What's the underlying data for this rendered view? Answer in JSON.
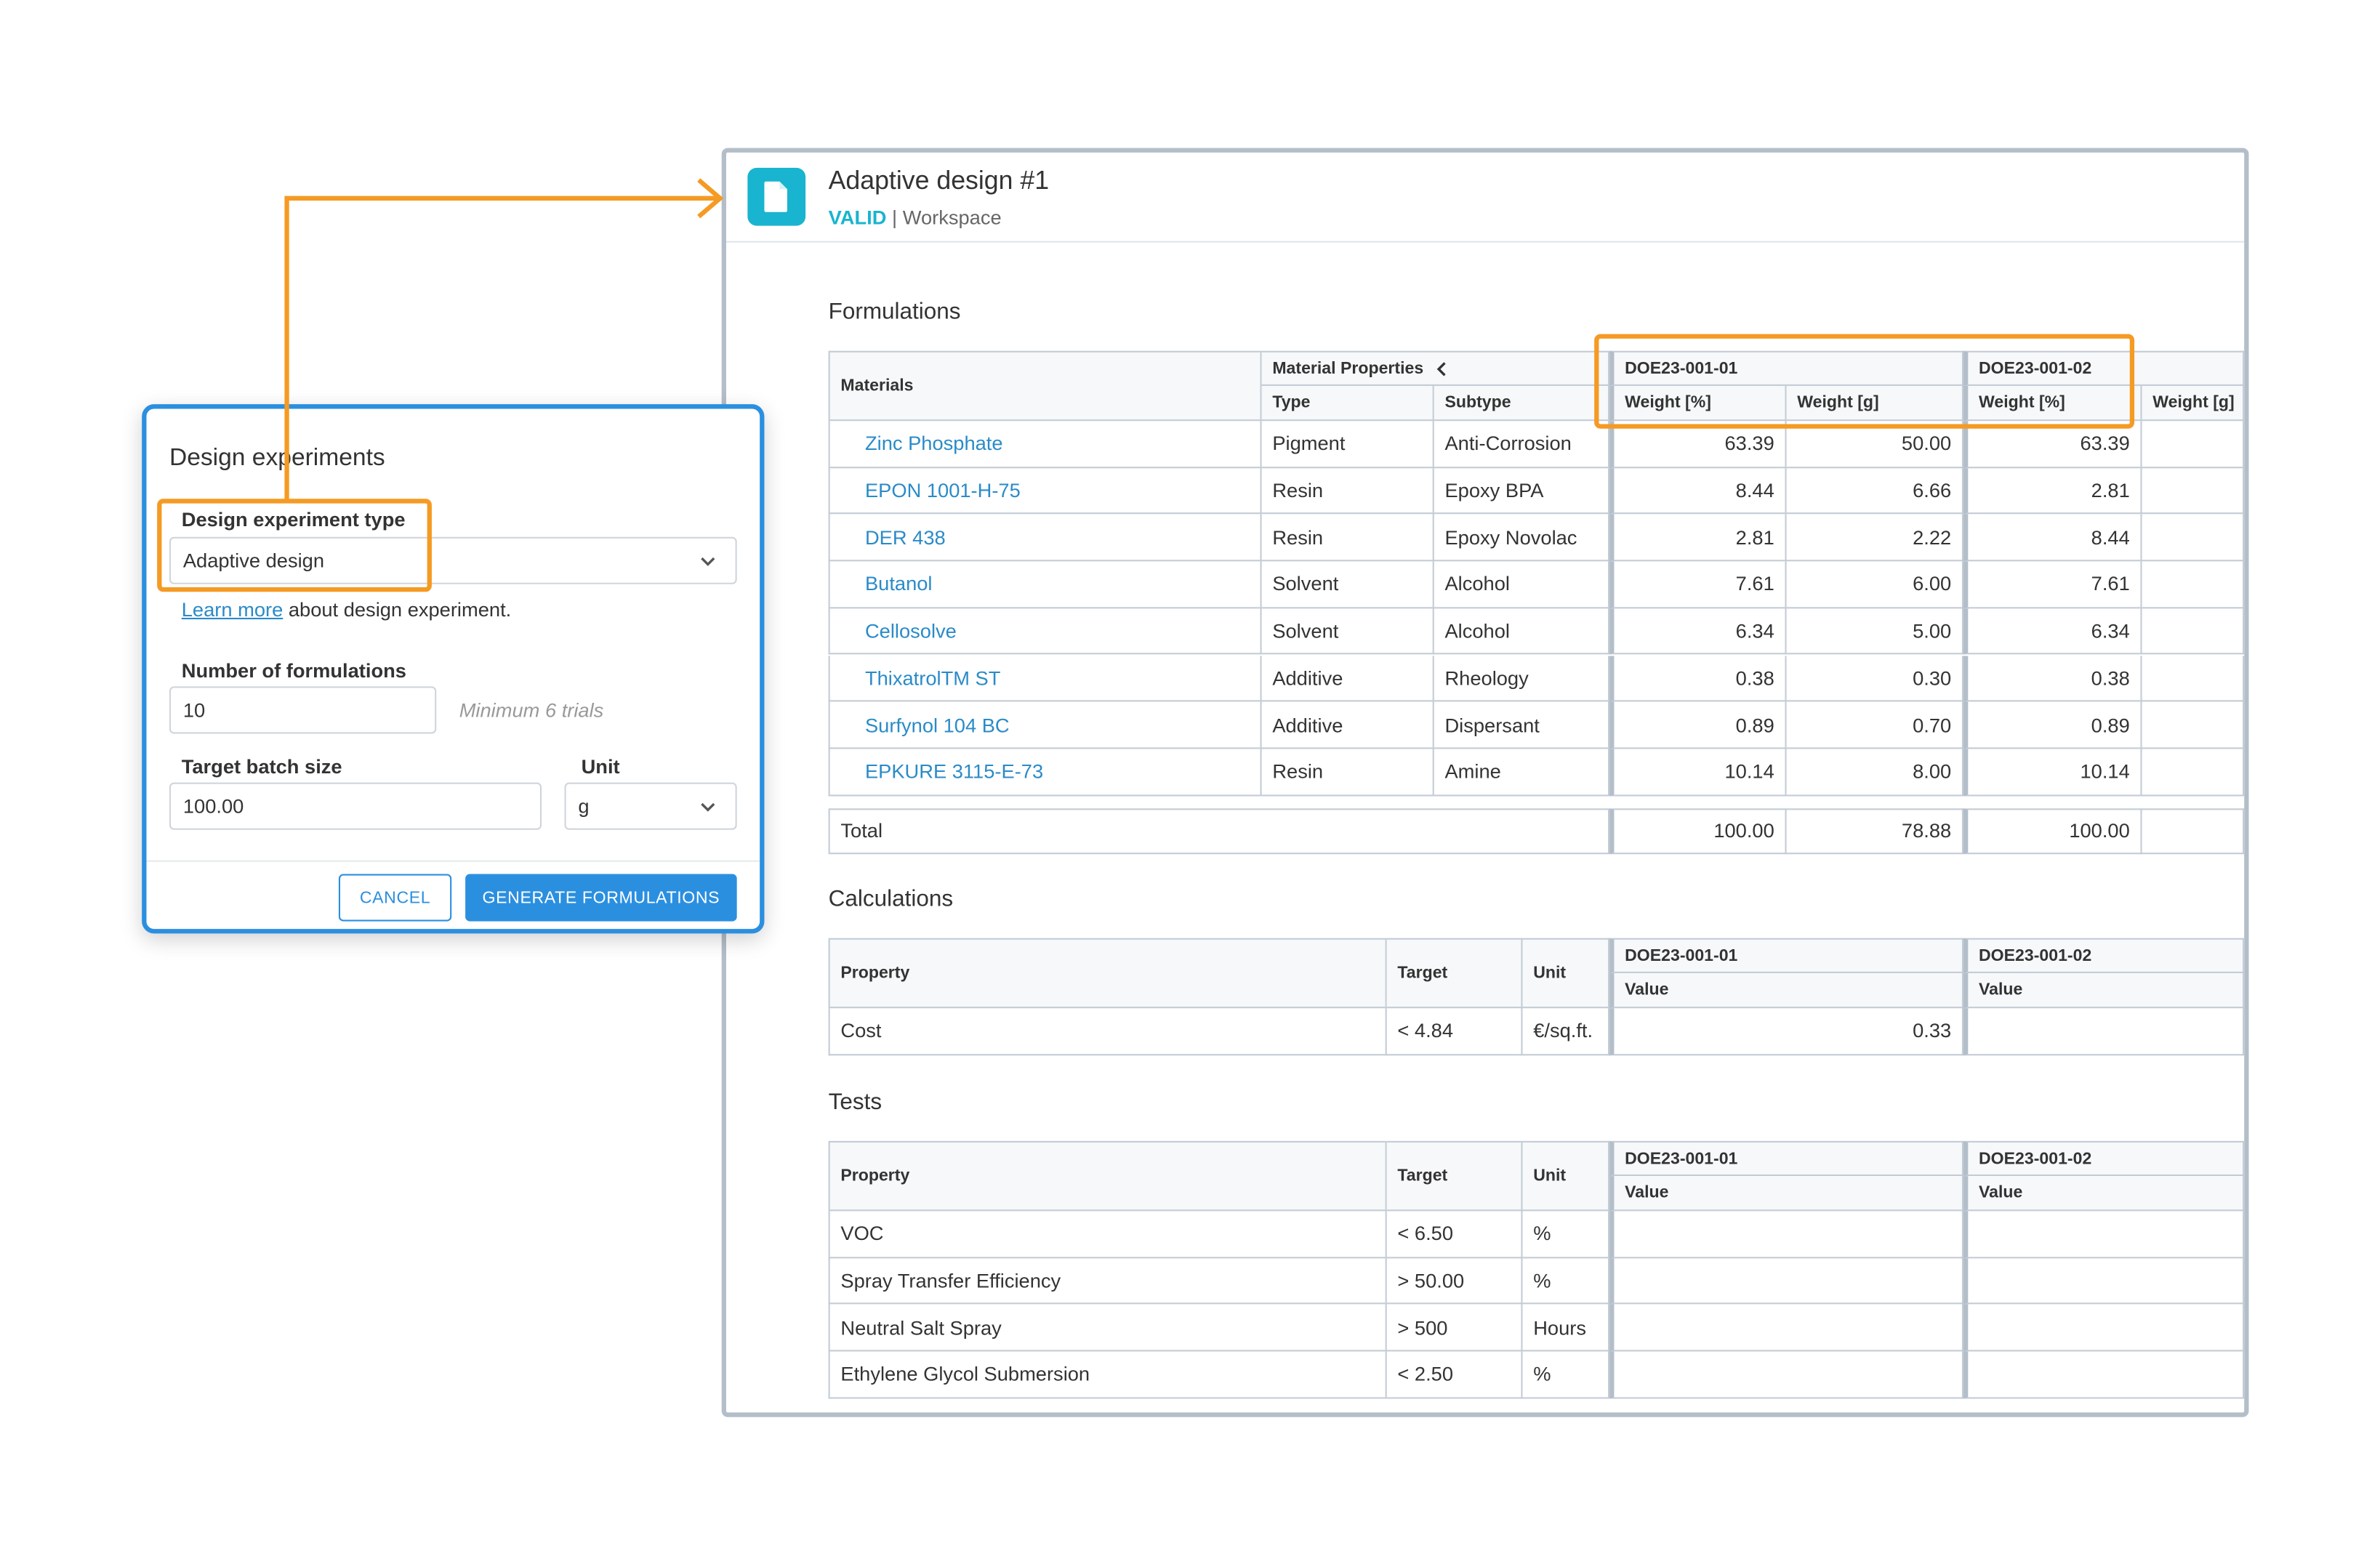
{
  "document": {
    "title": "Adaptive design #1",
    "status": "VALID",
    "separator": " | ",
    "location": "Workspace",
    "icon": "document-icon",
    "accent_color": "#19b4cf"
  },
  "formulations": {
    "section_title": "Formulations",
    "materials_header": "Materials",
    "properties_header": "Material Properties",
    "type_header": "Type",
    "subtype_header": "Subtype",
    "trial1": "DOE23-001-01",
    "trial2": "DOE23-001-02",
    "weight_pct_header": "Weight [%]",
    "weight_g_header": "Weight [g]",
    "rows": [
      {
        "material": "Zinc Phosphate",
        "type": "Pigment",
        "subtype": "Anti-Corrosion",
        "w1pct": "63.39",
        "w1g": "50.00",
        "w2pct": "63.39"
      },
      {
        "material": "EPON 1001-H-75",
        "type": "Resin",
        "subtype": "Epoxy BPA",
        "w1pct": "8.44",
        "w1g": "6.66",
        "w2pct": "2.81"
      },
      {
        "material": "DER 438",
        "type": "Resin",
        "subtype": "Epoxy Novolac",
        "w1pct": "2.81",
        "w1g": "2.22",
        "w2pct": "8.44"
      },
      {
        "material": "Butanol",
        "type": "Solvent",
        "subtype": "Alcohol",
        "w1pct": "7.61",
        "w1g": "6.00",
        "w2pct": "7.61"
      },
      {
        "material": "Cellosolve",
        "type": "Solvent",
        "subtype": "Alcohol",
        "w1pct": "6.34",
        "w1g": "5.00",
        "w2pct": "6.34"
      },
      {
        "material": "ThixatrolTM ST",
        "type": "Additive",
        "subtype": "Rheology",
        "w1pct": "0.38",
        "w1g": "0.30",
        "w2pct": "0.38"
      },
      {
        "material": "Surfynol 104 BC",
        "type": "Additive",
        "subtype": "Dispersant",
        "w1pct": "0.89",
        "w1g": "0.70",
        "w2pct": "0.89"
      },
      {
        "material": "EPKURE 3115-E-73",
        "type": "Resin",
        "subtype": "Amine",
        "w1pct": "10.14",
        "w1g": "8.00",
        "w2pct": "10.14"
      }
    ],
    "total_label": "Total",
    "total_w1pct": "100.00",
    "total_w1g": "78.88",
    "total_w2pct": "100.00"
  },
  "calculations": {
    "section_title": "Calculations",
    "property_header": "Property",
    "target_header": "Target",
    "unit_header": "Unit",
    "value_header": "Value",
    "rows": [
      {
        "property": "Cost",
        "target": "< 4.84",
        "unit": "€/sq.ft.",
        "v1": "0.33",
        "v2": ""
      }
    ]
  },
  "tests": {
    "section_title": "Tests",
    "rows": [
      {
        "property": "VOC",
        "target": "< 6.50",
        "unit": "%",
        "v1": "",
        "v2": ""
      },
      {
        "property": "Spray Transfer Efficiency",
        "target": "> 50.00",
        "unit": "%",
        "v1": "",
        "v2": ""
      },
      {
        "property": "Neutral Salt Spray",
        "target": "> 500",
        "unit": "Hours",
        "v1": "",
        "v2": ""
      },
      {
        "property": "Ethylene Glycol Submersion",
        "target": "< 2.50",
        "unit": "%",
        "v1": "",
        "v2": ""
      }
    ]
  },
  "dialog": {
    "title": "Design experiments",
    "type_label": "Design experiment type",
    "type_value": "Adaptive design",
    "learn_more_link": "Learn more",
    "learn_more_rest": " about design experiment.",
    "count_label": "Number of formulations",
    "count_value": "10",
    "count_hint": "Minimum 6 trials",
    "batch_label": "Target batch size",
    "batch_value": "100.00",
    "unit_label": "Unit",
    "unit_value": "g",
    "cancel_label": "CANCEL",
    "generate_label": "GENERATE FORMULATIONS",
    "primary_color": "#2b8fe0"
  },
  "annotation_color": "#f59a23"
}
